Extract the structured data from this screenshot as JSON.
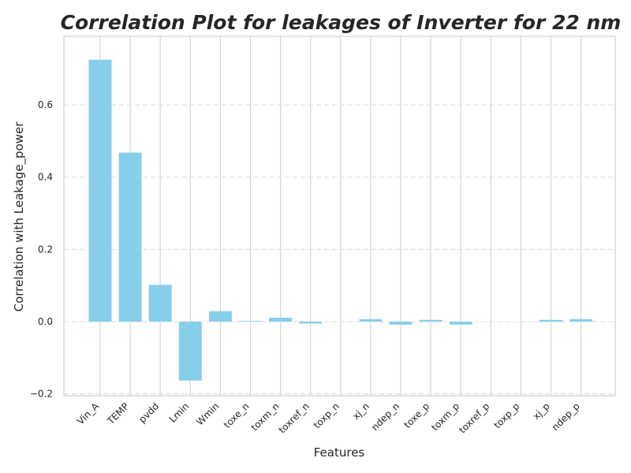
{
  "chart_data": {
    "type": "bar",
    "title": "Correlation Plot for leakages of Inverter for 22 nm",
    "xlabel": "Features",
    "ylabel": "Correlation with Leakage_power",
    "categories": [
      "Vin_A",
      "TEMP",
      "pvdd",
      "Lmin",
      "Wmin",
      "toxe_n",
      "toxm_n",
      "toxref_n",
      "toxp_n",
      "xj_n",
      "ndep_n",
      "toxe_p",
      "toxm_p",
      "toxref_p",
      "toxp_p",
      "xj_p",
      "ndep_p"
    ],
    "values": [
      0.725,
      0.468,
      0.102,
      -0.163,
      0.029,
      0.002,
      0.011,
      -0.005,
      0.0,
      0.007,
      -0.008,
      0.005,
      -0.008,
      0.0,
      0.0,
      0.005,
      0.007
    ],
    "yticks": [
      -0.2,
      0.0,
      0.2,
      0.4,
      0.6
    ],
    "ytick_labels": [
      "−0.2",
      "0.0",
      "0.2",
      "0.4",
      "0.6"
    ],
    "ylim": [
      -0.205,
      0.79
    ],
    "bar_color": "#87ceeb",
    "grid": true,
    "legend": "none"
  }
}
